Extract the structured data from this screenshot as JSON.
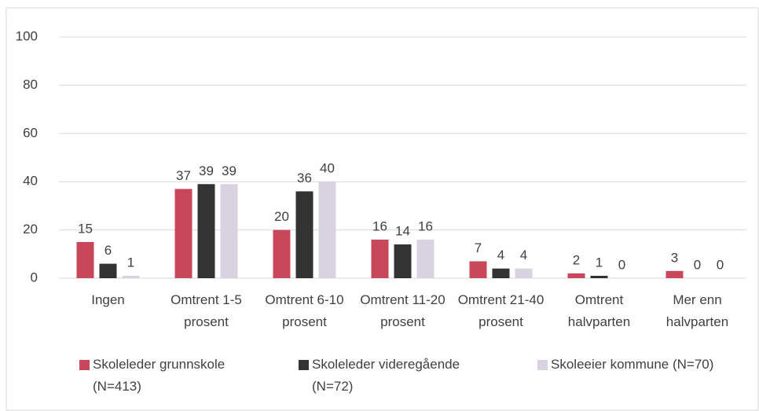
{
  "chart_data": {
    "type": "bar",
    "categories": [
      "Ingen",
      "Omtrent 1-5 prosent",
      "Omtrent 6-10 prosent",
      "Omtrent 11-20 prosent",
      "Omtrent 21-40 prosent",
      "Omtrent halvparten",
      "Mer enn halvparten"
    ],
    "series": [
      {
        "name": "Skoleleder grunnskole (N=413)",
        "color": "#c9475a",
        "values": [
          15,
          37,
          20,
          16,
          7,
          2,
          3
        ]
      },
      {
        "name": "Skoleleder videregående (N=72)",
        "color": "#333333",
        "values": [
          6,
          39,
          36,
          14,
          4,
          1,
          0
        ]
      },
      {
        "name": "Skoleeier kommune (N=70)",
        "color": "#d9d2e0",
        "values": [
          1,
          39,
          40,
          16,
          4,
          0,
          0
        ]
      }
    ],
    "ylim": [
      0,
      100
    ],
    "yticks": [
      0,
      20,
      40,
      60,
      80,
      100
    ],
    "grid": true,
    "legend": "bottom"
  }
}
